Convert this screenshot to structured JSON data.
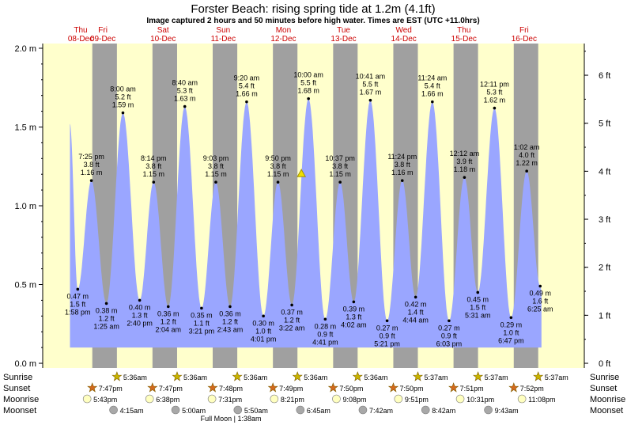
{
  "chart_data": {
    "type": "area",
    "title": "Forster Beach: rising  spring tide at 1.2m (4.1ft)",
    "subtitle": "Image captured 2 hours and 50 minutes before high water. Times are EST (UTC +11.0hrs)",
    "days": [
      {
        "dow": "Thu",
        "date": "08-Dec"
      },
      {
        "dow": "Fri",
        "date": "09-Dec"
      },
      {
        "dow": "Sat",
        "date": "10-Dec"
      },
      {
        "dow": "Sun",
        "date": "11-Dec"
      },
      {
        "dow": "Mon",
        "date": "12-Dec"
      },
      {
        "dow": "Tue",
        "date": "13-Dec"
      },
      {
        "dow": "Wed",
        "date": "14-Dec"
      },
      {
        "dow": "Thu",
        "date": "15-Dec"
      },
      {
        "dow": "Fri",
        "date": "16-Dec"
      }
    ],
    "y_left": {
      "unit": "m",
      "ticks": [
        "0.0 m",
        "0.5 m",
        "1.0 m",
        "1.5 m",
        "2.0 m"
      ],
      "values": [
        0,
        0.5,
        1.0,
        1.5,
        2.0
      ],
      "ylim": [
        -0.03,
        2.03
      ]
    },
    "y_right": {
      "unit": "ft",
      "ticks": [
        "0 ft",
        "1 ft",
        "2 ft",
        "3 ft",
        "4 ft",
        "5 ft",
        "6 ft"
      ],
      "values": [
        0,
        1,
        2,
        3,
        4,
        5,
        6
      ]
    },
    "x_axis": {
      "start": "08-Dec 00:00",
      "end": "16-Dec 24:00"
    },
    "tide_start": {
      "time": "08-Dec 00:00",
      "height_m": 1.52
    },
    "extremes": [
      {
        "type": "low",
        "day": 0,
        "time": "1:58 pm",
        "m": 0.47,
        "ft": "1.5 ft",
        "m_label": "0.47 m"
      },
      {
        "type": "high",
        "day": 0,
        "time": "7:25 pm",
        "m": 1.16,
        "ft": "3.8 ft",
        "m_label": "1.16 m"
      },
      {
        "type": "low",
        "day": 1,
        "time": "1:25 am",
        "m": 0.38,
        "ft": "1.2 ft",
        "m_label": "0.38 m"
      },
      {
        "type": "high",
        "day": 1,
        "time": "8:00 am",
        "m": 1.59,
        "ft": "5.2 ft",
        "m_label": "1.59 m"
      },
      {
        "type": "low",
        "day": 1,
        "time": "2:40 pm",
        "m": 0.4,
        "ft": "1.3 ft",
        "m_label": "0.40 m"
      },
      {
        "type": "high",
        "day": 1,
        "time": "8:14 pm",
        "m": 1.15,
        "ft": "3.8 ft",
        "m_label": "1.15 m"
      },
      {
        "type": "low",
        "day": 2,
        "time": "2:04 am",
        "m": 0.36,
        "ft": "1.2 ft",
        "m_label": "0.36 m"
      },
      {
        "type": "high",
        "day": 2,
        "time": "8:40 am",
        "m": 1.63,
        "ft": "5.3 ft",
        "m_label": "1.63 m"
      },
      {
        "type": "low",
        "day": 2,
        "time": "3:21 pm",
        "m": 0.35,
        "ft": "1.1 ft",
        "m_label": "0.35 m"
      },
      {
        "type": "high",
        "day": 2,
        "time": "9:03 pm",
        "m": 1.15,
        "ft": "3.8 ft",
        "m_label": "1.15 m"
      },
      {
        "type": "low",
        "day": 3,
        "time": "2:43 am",
        "m": 0.36,
        "ft": "1.2 ft",
        "m_label": "0.36 m"
      },
      {
        "type": "high",
        "day": 3,
        "time": "9:20 am",
        "m": 1.66,
        "ft": "5.4 ft",
        "m_label": "1.66 m"
      },
      {
        "type": "low",
        "day": 3,
        "time": "4:01 pm",
        "m": 0.3,
        "ft": "1.0 ft",
        "m_label": "0.30 m"
      },
      {
        "type": "high",
        "day": 3,
        "time": "9:50 pm",
        "m": 1.15,
        "ft": "3.8 ft",
        "m_label": "1.15 m"
      },
      {
        "type": "low",
        "day": 4,
        "time": "3:22 am",
        "m": 0.37,
        "ft": "1.2 ft",
        "m_label": "0.37 m"
      },
      {
        "type": "high",
        "day": 4,
        "time": "10:00 am",
        "m": 1.68,
        "ft": "5.5 ft",
        "m_label": "1.68 m"
      },
      {
        "type": "low",
        "day": 4,
        "time": "4:41 pm",
        "m": 0.28,
        "ft": "0.9 ft",
        "m_label": "0.28 m"
      },
      {
        "type": "high",
        "day": 4,
        "time": "10:37 pm",
        "m": 1.15,
        "ft": "3.8 ft",
        "m_label": "1.15 m"
      },
      {
        "type": "low",
        "day": 5,
        "time": "4:02 am",
        "m": 0.39,
        "ft": "1.3 ft",
        "m_label": "0.39 m"
      },
      {
        "type": "high",
        "day": 5,
        "time": "10:41 am",
        "m": 1.67,
        "ft": "5.5 ft",
        "m_label": "1.67 m"
      },
      {
        "type": "low",
        "day": 5,
        "time": "5:21 pm",
        "m": 0.27,
        "ft": "0.9 ft",
        "m_label": "0.27 m"
      },
      {
        "type": "high",
        "day": 5,
        "time": "11:24 pm",
        "m": 1.16,
        "ft": "3.8 ft",
        "m_label": "1.16 m"
      },
      {
        "type": "low",
        "day": 6,
        "time": "4:44 am",
        "m": 0.42,
        "ft": "1.4 ft",
        "m_label": "0.42 m"
      },
      {
        "type": "high",
        "day": 6,
        "time": "11:24 am",
        "m": 1.66,
        "ft": "5.4 ft",
        "m_label": "1.66 m"
      },
      {
        "type": "low",
        "day": 6,
        "time": "6:03 pm",
        "m": 0.27,
        "ft": "0.9 ft",
        "m_label": "0.27 m"
      },
      {
        "type": "high",
        "day": 7,
        "time": "12:12 am",
        "m": 1.18,
        "ft": "3.9 ft",
        "m_label": "1.18 m"
      },
      {
        "type": "low",
        "day": 7,
        "time": "5:31 am",
        "m": 0.45,
        "ft": "1.5 ft",
        "m_label": "0.45 m"
      },
      {
        "type": "high",
        "day": 7,
        "time": "12:11 pm",
        "m": 1.62,
        "ft": "5.3 ft",
        "m_label": "1.62 m"
      },
      {
        "type": "low",
        "day": 7,
        "time": "6:47 pm",
        "m": 0.29,
        "ft": "1.0 ft",
        "m_label": "0.29 m"
      },
      {
        "type": "high",
        "day": 8,
        "time": "1:02 am",
        "m": 1.22,
        "ft": "4.0 ft",
        "m_label": "1.22 m"
      },
      {
        "type": "low",
        "day": 8,
        "time": "6:25 am",
        "m": 0.49,
        "ft": "1.6 ft",
        "m_label": "0.49 m"
      }
    ],
    "current": {
      "day": 4,
      "time": "7:10 am",
      "m": 1.2
    },
    "nights": [
      {
        "start_day": 0,
        "start": "7:47 pm",
        "end_day": 1,
        "end": "5:36 am"
      },
      {
        "start_day": 1,
        "start": "7:47 pm",
        "end_day": 2,
        "end": "5:36 am"
      },
      {
        "start_day": 2,
        "start": "7:48 pm",
        "end_day": 3,
        "end": "5:36 am"
      },
      {
        "start_day": 3,
        "start": "7:49 pm",
        "end_day": 4,
        "end": "5:36 am"
      },
      {
        "start_day": 4,
        "start": "7:50 pm",
        "end_day": 5,
        "end": "5:36 am"
      },
      {
        "start_day": 5,
        "start": "7:50 pm",
        "end_day": 6,
        "end": "5:37 am"
      },
      {
        "start_day": 6,
        "start": "7:51 pm",
        "end_day": 7,
        "end": "5:37 am"
      },
      {
        "start_day": 7,
        "start": "7:52 pm",
        "end_day": 8,
        "end": "5:37 am"
      }
    ],
    "colors": {
      "tide": "#9aa6ff",
      "day_bg": "#ffffcc",
      "night_bg": "#a0a0a0",
      "day_label": "#cc0000",
      "sunrise_icon": "#c8b400",
      "sunset_icon": "#d2691e",
      "moonrise_icon": "#ffffc0",
      "moonset_icon": "#a8a8a8"
    },
    "rows": {
      "sunrise": {
        "label": "Sunrise",
        "items": [
          {
            "day": 1,
            "time": "5:36am"
          },
          {
            "day": 2,
            "time": "5:36am"
          },
          {
            "day": 3,
            "time": "5:36am"
          },
          {
            "day": 4,
            "time": "5:36am"
          },
          {
            "day": 5,
            "time": "5:36am"
          },
          {
            "day": 6,
            "time": "5:37am"
          },
          {
            "day": 7,
            "time": "5:37am"
          },
          {
            "day": 8,
            "time": "5:37am"
          }
        ]
      },
      "sunset": {
        "label": "Sunset",
        "items": [
          {
            "day": 0,
            "time": "7:47pm"
          },
          {
            "day": 1,
            "time": "7:47pm"
          },
          {
            "day": 2,
            "time": "7:48pm"
          },
          {
            "day": 3,
            "time": "7:49pm"
          },
          {
            "day": 4,
            "time": "7:50pm"
          },
          {
            "day": 5,
            "time": "7:50pm"
          },
          {
            "day": 6,
            "time": "7:51pm"
          },
          {
            "day": 7,
            "time": "7:52pm"
          }
        ]
      },
      "moonrise": {
        "label": "Moonrise",
        "items": [
          {
            "day": 0,
            "time": "5:43pm"
          },
          {
            "day": 1,
            "time": "6:38pm"
          },
          {
            "day": 2,
            "time": "7:31pm"
          },
          {
            "day": 3,
            "time": "8:21pm"
          },
          {
            "day": 4,
            "time": "9:08pm"
          },
          {
            "day": 5,
            "time": "9:51pm"
          },
          {
            "day": 6,
            "time": "10:31pm"
          },
          {
            "day": 7,
            "time": "11:08pm"
          }
        ]
      },
      "moonset": {
        "label": "Moonset",
        "items": [
          {
            "day": 1,
            "time": "4:15am"
          },
          {
            "day": 2,
            "time": "5:00am"
          },
          {
            "day": 3,
            "time": "5:50am"
          },
          {
            "day": 4,
            "time": "6:45am"
          },
          {
            "day": 5,
            "time": "7:42am"
          },
          {
            "day": 6,
            "time": "8:42am"
          },
          {
            "day": 7,
            "time": "9:43am"
          }
        ]
      }
    },
    "moon_phase": {
      "label": "Full Moon | 1:38am",
      "day": 4
    }
  }
}
